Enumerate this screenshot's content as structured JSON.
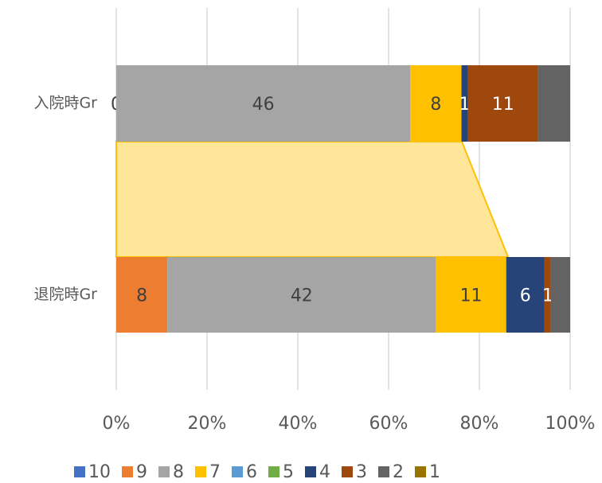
{
  "chart_data": {
    "type": "stacked_bar_100",
    "orientation": "horizontal",
    "categories": [
      "入院時Gr",
      "退院時Gr"
    ],
    "series": [
      {
        "name": "10",
        "color": "#4472c4",
        "values": [
          null,
          null
        ]
      },
      {
        "name": "9",
        "color": "#ed7d31",
        "values": [
          0,
          8
        ]
      },
      {
        "name": "8",
        "color": "#a5a5a5",
        "values": [
          46,
          42
        ]
      },
      {
        "name": "7",
        "color": "#ffc000",
        "values": [
          8,
          11
        ]
      },
      {
        "name": "6",
        "color": "#5b9bd5",
        "values": [
          null,
          null
        ]
      },
      {
        "name": "5",
        "color": "#70ad47",
        "values": [
          null,
          null
        ]
      },
      {
        "name": "4",
        "color": "#264478",
        "values": [
          1,
          6
        ]
      },
      {
        "name": "3",
        "color": "#9e480e",
        "values": [
          11,
          1
        ]
      },
      {
        "name": "2",
        "color": "#636363",
        "values": [
          5,
          3
        ],
        "value_labels": [
          null,
          null
        ]
      },
      {
        "name": "1",
        "color": "#997300",
        "values": [
          null,
          null
        ]
      }
    ],
    "xlim": [
      0,
      100
    ],
    "xticks": [
      {
        "value": 0,
        "label": "0%"
      },
      {
        "value": 20,
        "label": "20%"
      },
      {
        "value": 40,
        "label": "40%"
      },
      {
        "value": 60,
        "label": "60%"
      },
      {
        "value": 80,
        "label": "80%"
      },
      {
        "value": 100,
        "label": "100%"
      }
    ],
    "grid": true,
    "legend": "bottom"
  }
}
